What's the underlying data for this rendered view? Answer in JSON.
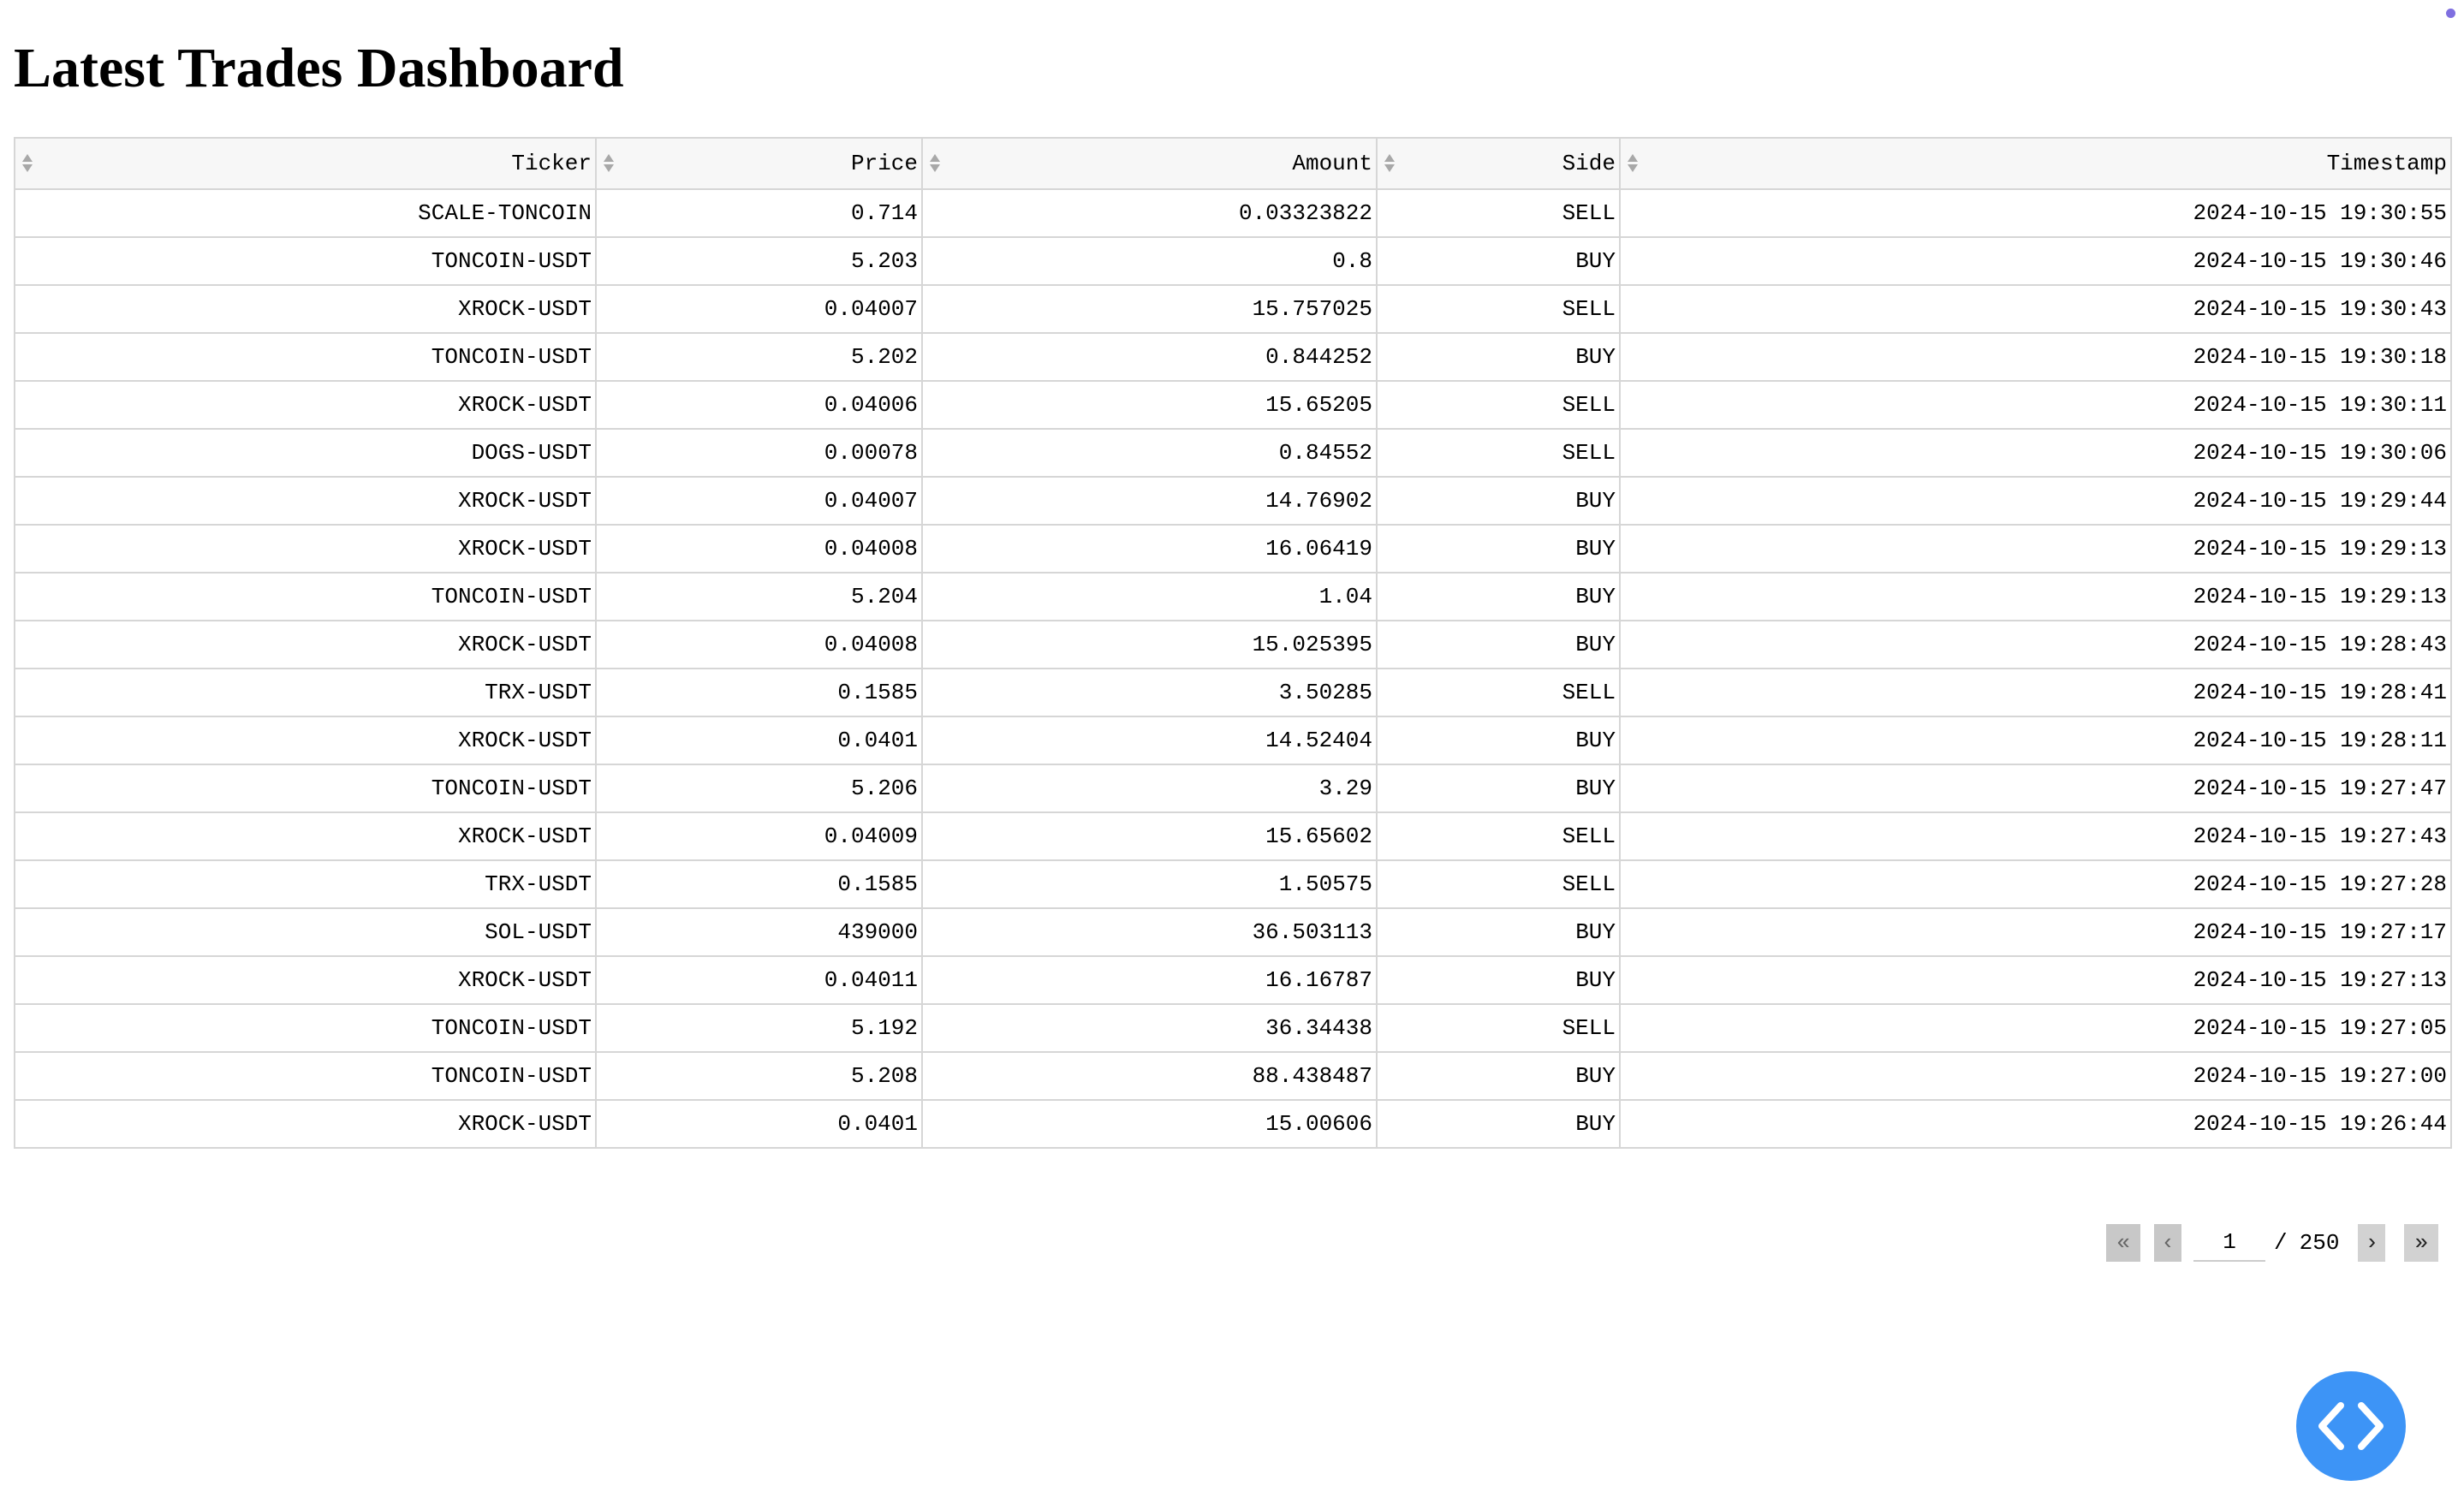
{
  "title": "Latest Trades Dashboard",
  "colors": {
    "fab": "#3d94f6",
    "header_bg": "#f7f7f7",
    "border": "#d6d6d6",
    "dot": "#7f6fe0"
  },
  "table": {
    "columns": [
      "Ticker",
      "Price",
      "Amount",
      "Side",
      "Timestamp"
    ],
    "rows": [
      [
        "SCALE-TONCOIN",
        "0.714",
        "0.03323822",
        "SELL",
        "2024-10-15 19:30:55"
      ],
      [
        "TONCOIN-USDT",
        "5.203",
        "0.8",
        "BUY",
        "2024-10-15 19:30:46"
      ],
      [
        "XROCK-USDT",
        "0.04007",
        "15.757025",
        "SELL",
        "2024-10-15 19:30:43"
      ],
      [
        "TONCOIN-USDT",
        "5.202",
        "0.844252",
        "BUY",
        "2024-10-15 19:30:18"
      ],
      [
        "XROCK-USDT",
        "0.04006",
        "15.65205",
        "SELL",
        "2024-10-15 19:30:11"
      ],
      [
        "DOGS-USDT",
        "0.00078",
        "0.84552",
        "SELL",
        "2024-10-15 19:30:06"
      ],
      [
        "XROCK-USDT",
        "0.04007",
        "14.76902",
        "BUY",
        "2024-10-15 19:29:44"
      ],
      [
        "XROCK-USDT",
        "0.04008",
        "16.06419",
        "BUY",
        "2024-10-15 19:29:13"
      ],
      [
        "TONCOIN-USDT",
        "5.204",
        "1.04",
        "BUY",
        "2024-10-15 19:29:13"
      ],
      [
        "XROCK-USDT",
        "0.04008",
        "15.025395",
        "BUY",
        "2024-10-15 19:28:43"
      ],
      [
        "TRX-USDT",
        "0.1585",
        "3.50285",
        "SELL",
        "2024-10-15 19:28:41"
      ],
      [
        "XROCK-USDT",
        "0.0401",
        "14.52404",
        "BUY",
        "2024-10-15 19:28:11"
      ],
      [
        "TONCOIN-USDT",
        "5.206",
        "3.29",
        "BUY",
        "2024-10-15 19:27:47"
      ],
      [
        "XROCK-USDT",
        "0.04009",
        "15.65602",
        "SELL",
        "2024-10-15 19:27:43"
      ],
      [
        "TRX-USDT",
        "0.1585",
        "1.50575",
        "SELL",
        "2024-10-15 19:27:28"
      ],
      [
        "SOL-USDT",
        "439000",
        "36.503113",
        "BUY",
        "2024-10-15 19:27:17"
      ],
      [
        "XROCK-USDT",
        "0.04011",
        "16.16787",
        "BUY",
        "2024-10-15 19:27:13"
      ],
      [
        "TONCOIN-USDT",
        "5.192",
        "36.34438",
        "SELL",
        "2024-10-15 19:27:05"
      ],
      [
        "TONCOIN-USDT",
        "5.208",
        "88.438487",
        "BUY",
        "2024-10-15 19:27:00"
      ],
      [
        "XROCK-USDT",
        "0.0401",
        "15.00606",
        "BUY",
        "2024-10-15 19:26:44"
      ]
    ]
  },
  "pagination": {
    "first_label": "«",
    "prev_label": "‹",
    "next_label": "›",
    "last_label": "»",
    "current_page": "1",
    "separator": "/",
    "total_pages": "250"
  },
  "icons": {
    "sort": "sort-icon",
    "code": "code-icon"
  }
}
